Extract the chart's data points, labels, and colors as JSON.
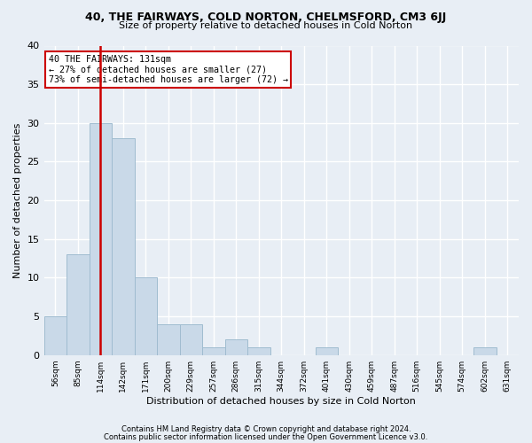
{
  "title1": "40, THE FAIRWAYS, COLD NORTON, CHELMSFORD, CM3 6JJ",
  "title2": "Size of property relative to detached houses in Cold Norton",
  "xlabel": "Distribution of detached houses by size in Cold Norton",
  "ylabel": "Number of detached properties",
  "bin_labels": [
    "56sqm",
    "85sqm",
    "114sqm",
    "142sqm",
    "171sqm",
    "200sqm",
    "229sqm",
    "257sqm",
    "286sqm",
    "315sqm",
    "344sqm",
    "372sqm",
    "401sqm",
    "430sqm",
    "459sqm",
    "487sqm",
    "516sqm",
    "545sqm",
    "574sqm",
    "602sqm",
    "631sqm"
  ],
  "bar_values": [
    5,
    13,
    30,
    28,
    10,
    4,
    4,
    1,
    2,
    1,
    0,
    0,
    1,
    0,
    0,
    0,
    0,
    0,
    0,
    1,
    0
  ],
  "bar_color": "#c9d9e8",
  "bar_edge_color": "#a0bcd0",
  "vline_color": "#cc0000",
  "vline_x_index": 2,
  "annotation_text": "40 THE FAIRWAYS: 131sqm\n← 27% of detached houses are smaller (27)\n73% of semi-detached houses are larger (72) →",
  "annotation_box_color": "#ffffff",
  "annotation_box_edge": "#cc0000",
  "ylim": [
    0,
    40
  ],
  "yticks": [
    0,
    5,
    10,
    15,
    20,
    25,
    30,
    35,
    40
  ],
  "footer1": "Contains HM Land Registry data © Crown copyright and database right 2024.",
  "footer2": "Contains public sector information licensed under the Open Government Licence v3.0.",
  "bg_color": "#e8eef5",
  "plot_bg_color": "#e8eef5",
  "grid_color": "#ffffff"
}
